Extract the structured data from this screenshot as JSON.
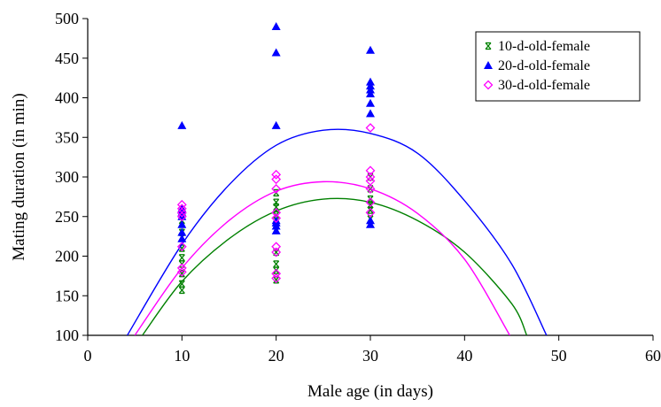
{
  "chart_data": {
    "type": "scatter",
    "xlabel": "Male age (in days)",
    "ylabel": "Mating duration (in min)",
    "xlim": [
      0,
      60
    ],
    "ylim": [
      100,
      500
    ],
    "xticks": [
      0,
      10,
      20,
      30,
      40,
      50,
      60
    ],
    "yticks": [
      100,
      150,
      200,
      250,
      300,
      350,
      400,
      450,
      500
    ],
    "grid": false,
    "legend_position": "top-right",
    "series": [
      {
        "name": "10-d-old-female",
        "color": "#008000",
        "marker": "bar-cross",
        "points": [
          [
            10,
            157
          ],
          [
            10,
            165
          ],
          [
            10,
            178
          ],
          [
            10,
            190
          ],
          [
            10,
            198
          ],
          [
            10,
            210
          ],
          [
            10,
            224
          ],
          [
            10,
            230
          ],
          [
            10,
            245
          ],
          [
            20,
            170
          ],
          [
            20,
            182
          ],
          [
            20,
            190
          ],
          [
            20,
            205
          ],
          [
            20,
            240
          ],
          [
            20,
            252
          ],
          [
            20,
            262
          ],
          [
            20,
            268
          ],
          [
            20,
            280
          ],
          [
            30,
            247
          ],
          [
            30,
            258
          ],
          [
            30,
            265
          ],
          [
            30,
            272
          ],
          [
            30,
            285
          ],
          [
            30,
            300
          ]
        ],
        "trend": [
          [
            5.8,
            100
          ],
          [
            10,
            168
          ],
          [
            15,
            222
          ],
          [
            20,
            257
          ],
          [
            25,
            272
          ],
          [
            30,
            268
          ],
          [
            35,
            245
          ],
          [
            40,
            205
          ],
          [
            45,
            140
          ],
          [
            46.6,
            100
          ]
        ]
      },
      {
        "name": "20-d-old-female",
        "color": "#0000ff",
        "marker": "triangle",
        "points": [
          [
            10,
            222
          ],
          [
            10,
            230
          ],
          [
            10,
            240
          ],
          [
            10,
            250
          ],
          [
            10,
            255
          ],
          [
            10,
            258
          ],
          [
            10,
            260
          ],
          [
            10,
            365
          ],
          [
            20,
            232
          ],
          [
            20,
            238
          ],
          [
            20,
            242
          ],
          [
            20,
            245
          ],
          [
            20,
            365
          ],
          [
            20,
            457
          ],
          [
            20,
            490
          ],
          [
            30,
            240
          ],
          [
            30,
            245
          ],
          [
            30,
            380
          ],
          [
            30,
            393
          ],
          [
            30,
            405
          ],
          [
            30,
            410
          ],
          [
            30,
            415
          ],
          [
            30,
            420
          ],
          [
            30,
            460
          ]
        ],
        "trend": [
          [
            4.2,
            100
          ],
          [
            10,
            215
          ],
          [
            15,
            290
          ],
          [
            20,
            340
          ],
          [
            25,
            359
          ],
          [
            30,
            355
          ],
          [
            35,
            330
          ],
          [
            40,
            270
          ],
          [
            45,
            190
          ],
          [
            48.7,
            100
          ]
        ]
      },
      {
        "name": "30-d-old-female",
        "color": "#ff00ff",
        "marker": "diamond",
        "points": [
          [
            10,
            180
          ],
          [
            10,
            185
          ],
          [
            10,
            212
          ],
          [
            10,
            250
          ],
          [
            10,
            255
          ],
          [
            10,
            260
          ],
          [
            10,
            265
          ],
          [
            20,
            172
          ],
          [
            20,
            178
          ],
          [
            20,
            205
          ],
          [
            20,
            212
          ],
          [
            20,
            248
          ],
          [
            20,
            255
          ],
          [
            20,
            285
          ],
          [
            20,
            297
          ],
          [
            20,
            303
          ],
          [
            30,
            255
          ],
          [
            30,
            268
          ],
          [
            30,
            285
          ],
          [
            30,
            295
          ],
          [
            30,
            300
          ],
          [
            30,
            308
          ],
          [
            30,
            362
          ]
        ],
        "trend": [
          [
            5,
            100
          ],
          [
            10,
            185
          ],
          [
            15,
            245
          ],
          [
            20,
            282
          ],
          [
            25,
            294
          ],
          [
            30,
            285
          ],
          [
            35,
            254
          ],
          [
            40,
            196
          ],
          [
            44.8,
            100
          ]
        ]
      }
    ]
  }
}
